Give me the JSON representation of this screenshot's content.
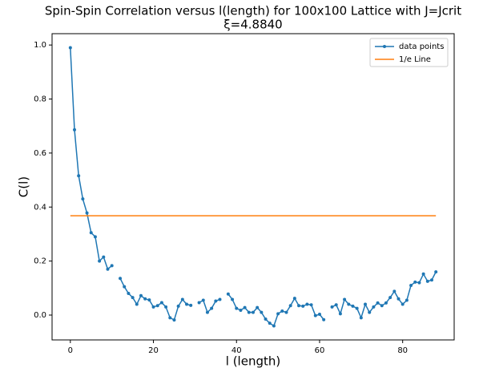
{
  "chart_data": {
    "type": "line",
    "title": "Spin-Spin Correlation versus l(length) for 100x100 Lattice with J=Jcrit",
    "subtitle": "ξ=4.8840",
    "x_label": "l (length)",
    "y_label": "C(l)",
    "xlim": [
      -4.4,
      92.4
    ],
    "ylim": [
      -0.092,
      1.042
    ],
    "xticks": [
      0,
      20,
      40,
      60,
      80
    ],
    "yticks": [
      {
        "value": 0,
        "label": "0.0"
      },
      0.2,
      0.4,
      0.6,
      0.8,
      {
        "value": 1,
        "label": "1.0"
      }
    ],
    "grid": false,
    "legend": "upper right",
    "series": [
      {
        "name": "data points",
        "color": "#1f77b4",
        "marker": true,
        "x": [
          0,
          1,
          2,
          3,
          4,
          5,
          6,
          7,
          8,
          9,
          10,
          11,
          12,
          13,
          14,
          15,
          16,
          17,
          18,
          19,
          20,
          21,
          22,
          23,
          24,
          25,
          26,
          27,
          28,
          29,
          30,
          31,
          32,
          33,
          34,
          35,
          36,
          37,
          38,
          39,
          40,
          41,
          42,
          43,
          44,
          45,
          46,
          47,
          48,
          49,
          50,
          51,
          52,
          53,
          54,
          55,
          56,
          57,
          58,
          59,
          60,
          61,
          62,
          63,
          64,
          65,
          66,
          67,
          68,
          69,
          70,
          71,
          72,
          73,
          74,
          75,
          76,
          77,
          78,
          79,
          80,
          81,
          82,
          83,
          84,
          85,
          86,
          87,
          88
        ],
        "values": [
          0.99,
          0.686,
          0.516,
          0.43,
          0.378,
          0.305,
          0.29,
          0.2,
          0.215,
          0.17,
          0.183,
          null,
          0.136,
          0.105,
          0.08,
          0.065,
          0.04,
          0.072,
          0.06,
          0.056,
          0.03,
          0.035,
          0.046,
          0.03,
          -0.01,
          -0.018,
          0.033,
          0.058,
          0.04,
          0.036,
          null,
          0.046,
          0.055,
          0.01,
          0.025,
          0.052,
          0.058,
          null,
          0.078,
          0.058,
          0.025,
          0.018,
          0.028,
          0.01,
          0.01,
          0.028,
          0.01,
          -0.015,
          -0.03,
          -0.04,
          0.005,
          0.015,
          0.01,
          0.035,
          0.062,
          0.035,
          0.033,
          0.04,
          0.038,
          -0.002,
          0.003,
          -0.017,
          null,
          0.03,
          0.038,
          0.005,
          0.058,
          0.04,
          0.033,
          0.025,
          -0.01,
          0.04,
          0.01,
          0.03,
          0.045,
          0.035,
          0.045,
          0.065,
          0.088,
          0.06,
          0.04,
          0.055,
          0.11,
          0.122,
          0.12,
          0.152,
          0.125,
          0.13,
          0.16
        ]
      },
      {
        "name": "1/e Line",
        "color": "#ff7f0e",
        "marker": false,
        "x": [
          0,
          88
        ],
        "values": [
          0.3679,
          0.3679
        ]
      }
    ]
  }
}
